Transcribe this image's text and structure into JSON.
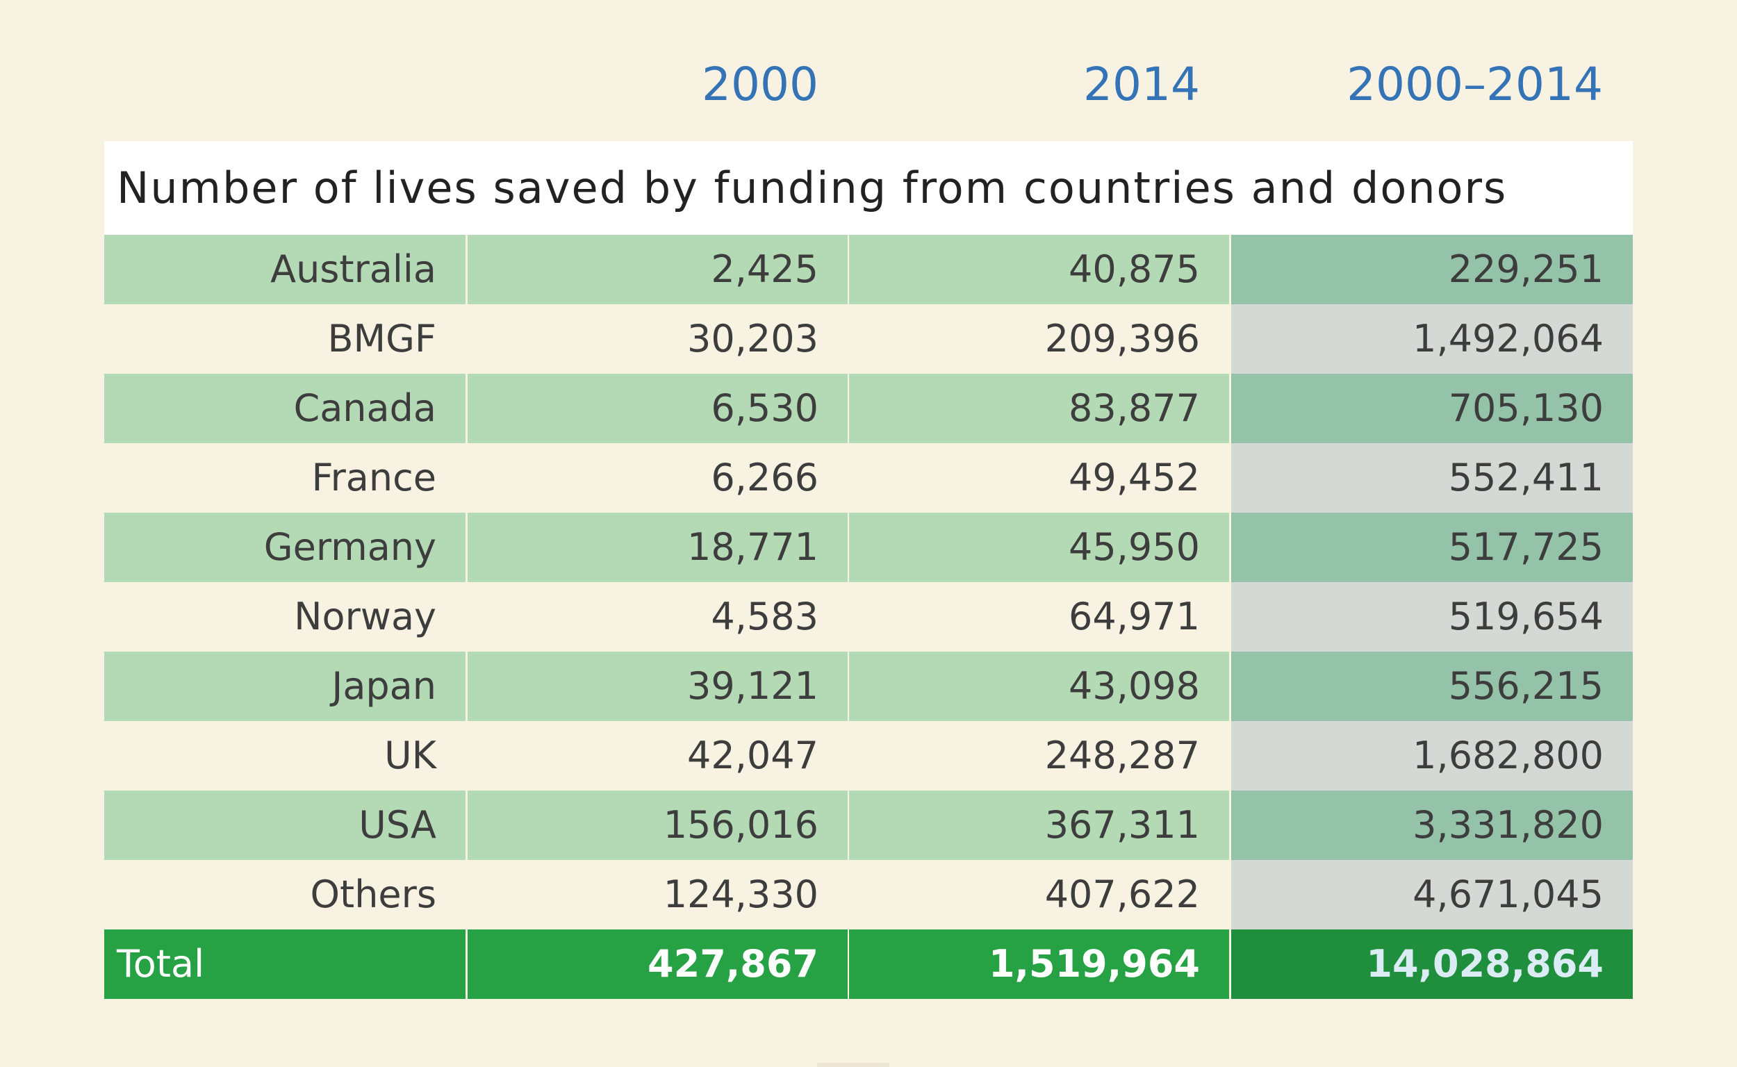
{
  "chart_data": {
    "type": "table",
    "title": "Number of lives saved by funding from countries and donors",
    "columns": [
      "2000",
      "2014",
      "2000–2014"
    ],
    "rows": [
      {
        "label": "Australia",
        "values": [
          "2,425",
          "40,875",
          "229,251"
        ]
      },
      {
        "label": "BMGF",
        "values": [
          "30,203",
          "209,396",
          "1,492,064"
        ]
      },
      {
        "label": "Canada",
        "values": [
          "6,530",
          "83,877",
          "705,130"
        ]
      },
      {
        "label": "France",
        "values": [
          "6,266",
          "49,452",
          "552,411"
        ]
      },
      {
        "label": "Germany",
        "values": [
          "18,771",
          "45,950",
          "517,725"
        ]
      },
      {
        "label": "Norway",
        "values": [
          "4,583",
          "64,971",
          "519,654"
        ]
      },
      {
        "label": "Japan",
        "values": [
          "39,121",
          "43,098",
          "556,215"
        ]
      },
      {
        "label": "UK",
        "values": [
          "42,047",
          "248,287",
          "1,682,800"
        ]
      },
      {
        "label": "USA",
        "values": [
          "156,016",
          "367,311",
          "3,331,820"
        ]
      },
      {
        "label": "Others",
        "values": [
          "124,330",
          "407,622",
          "4,671,045"
        ]
      }
    ],
    "total": {
      "label": "Total",
      "values": [
        "427,867",
        "1,519,964",
        "14,028,864"
      ]
    },
    "colors": {
      "header_text": "#3473b6",
      "row_green": "#b3dab5",
      "row_green_dark": "#95c3a9",
      "row_grey": "#d5d9d6",
      "total_green": "#26a244",
      "total_green_dark": "#1f8f3e",
      "background": "#f8f2e2"
    }
  }
}
